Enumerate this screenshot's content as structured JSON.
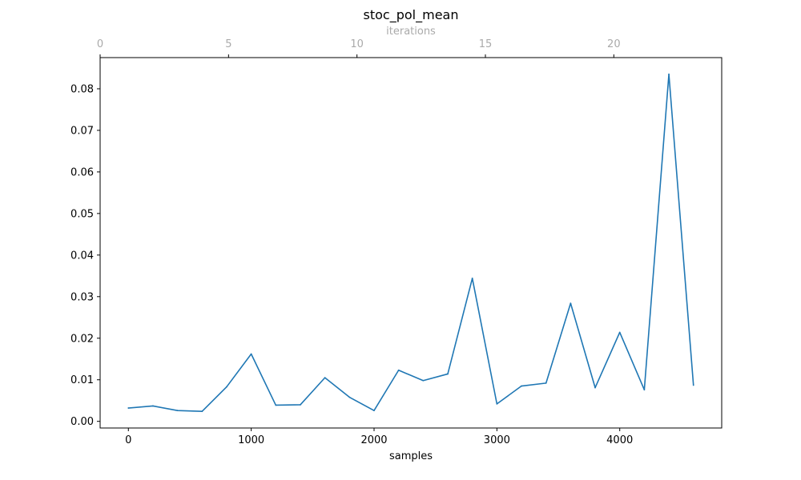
{
  "chart_data": {
    "type": "line",
    "title": "stoc_pol_mean",
    "xlabel": "samples",
    "ylabel": "",
    "top_xlabel": "iterations",
    "xlim": [
      -230,
      4830
    ],
    "ylim": [
      -0.0016,
      0.0875
    ],
    "x_ticks": [
      0,
      1000,
      2000,
      3000,
      4000
    ],
    "y_ticks": [
      0.0,
      0.01,
      0.02,
      0.03,
      0.04,
      0.05,
      0.06,
      0.07,
      0.08
    ],
    "y_tick_labels": [
      "0.00",
      "0.01",
      "0.02",
      "0.03",
      "0.04",
      "0.05",
      "0.06",
      "0.07",
      "0.08"
    ],
    "top_xlim": [
      0,
      24.2
    ],
    "top_ticks": [
      0,
      5,
      10,
      15,
      20
    ],
    "line_color": "#1f77b4",
    "grid": false,
    "series": [
      {
        "x": [
          0,
          200,
          400,
          600,
          800,
          1000,
          1200,
          1400,
          1600,
          1800,
          2000,
          2200,
          2400,
          2600,
          2800,
          3000,
          3200,
          3400,
          3600,
          3800,
          4000,
          4200,
          4400,
          4600
        ],
        "values": [
          0.0032,
          0.0037,
          0.0026,
          0.0024,
          0.0083,
          0.0162,
          0.0039,
          0.004,
          0.0105,
          0.0058,
          0.0026,
          0.0123,
          0.0098,
          0.0114,
          0.0344,
          0.0042,
          0.0085,
          0.0092,
          0.0284,
          0.0081,
          0.0214,
          0.0076,
          0.0835,
          0.0087
        ]
      }
    ]
  }
}
